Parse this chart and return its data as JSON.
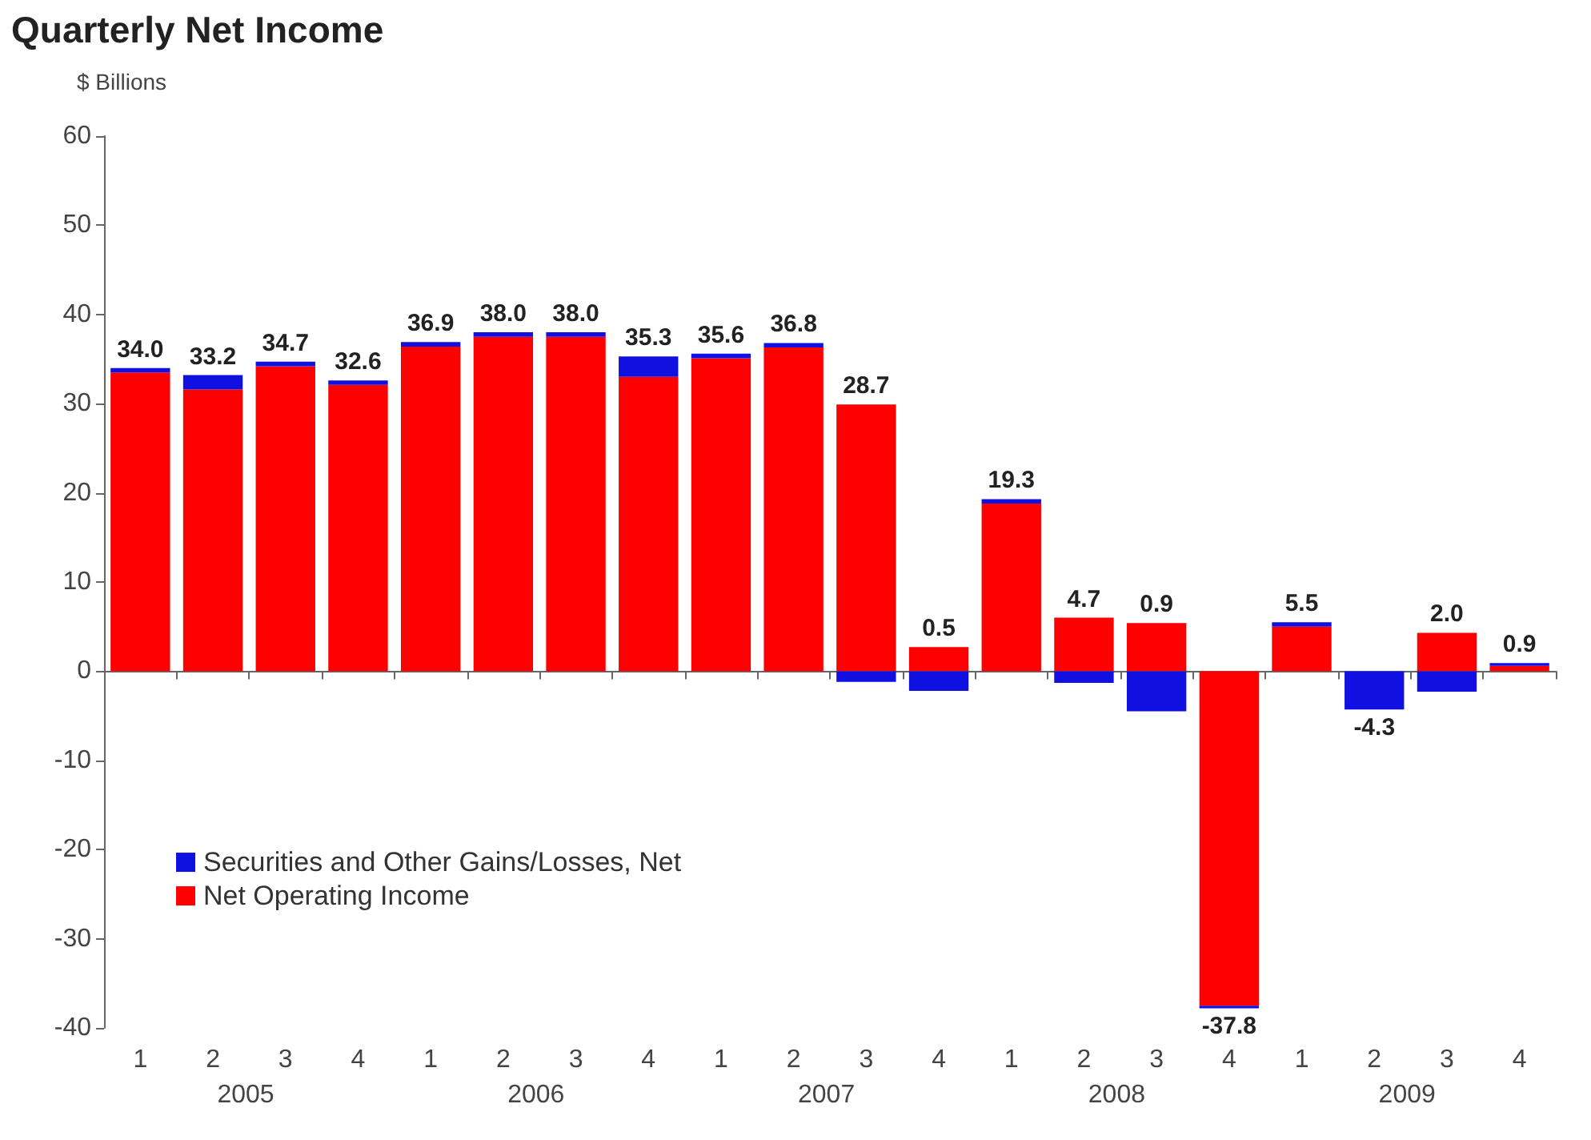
{
  "chart_data": {
    "type": "bar",
    "title": "Quarterly Net Income",
    "ylabel": "$ Billions",
    "categories": [
      "1",
      "2",
      "3",
      "4",
      "1",
      "2",
      "3",
      "4",
      "1",
      "2",
      "3",
      "4",
      "1",
      "2",
      "3",
      "4",
      "1",
      "2",
      "3",
      "4"
    ],
    "annotations": [
      "2005",
      "2006",
      "2007",
      "2008",
      "2009"
    ],
    "stacked": true,
    "series": [
      {
        "name": "Net Operating Income",
        "color": "#ff0000",
        "values": [
          33.5,
          31.6,
          34.2,
          32.1,
          36.4,
          37.5,
          37.5,
          33.0,
          35.1,
          36.3,
          29.9,
          2.7,
          18.8,
          6.0,
          5.4,
          -37.5,
          5.0,
          0,
          4.3,
          0.6
        ]
      },
      {
        "name": "Securities and Other Gains/Losses, Net",
        "color": "#1010e0",
        "values": [
          0.5,
          1.6,
          0.5,
          0.5,
          0.5,
          0.5,
          0.5,
          2.3,
          0.5,
          0.5,
          -1.2,
          -2.2,
          0.5,
          -1.3,
          -4.5,
          -0.3,
          0.5,
          -4.3,
          -2.3,
          0.3
        ]
      }
    ],
    "totals": [
      "34.0",
      "33.2",
      "34.7",
      "32.6",
      "36.9",
      "38.0",
      "38.0",
      "35.3",
      "35.6",
      "36.8",
      "28.7",
      "0.5",
      "19.3",
      "4.7",
      "0.9",
      "-37.8",
      "5.5",
      "-4.3",
      "2.0",
      "0.9"
    ],
    "ylim": [
      -40,
      60
    ],
    "yticks": [
      -40,
      -30,
      -20,
      -10,
      0,
      10,
      20,
      30,
      40,
      50,
      60
    ],
    "legend": "bottom left"
  }
}
